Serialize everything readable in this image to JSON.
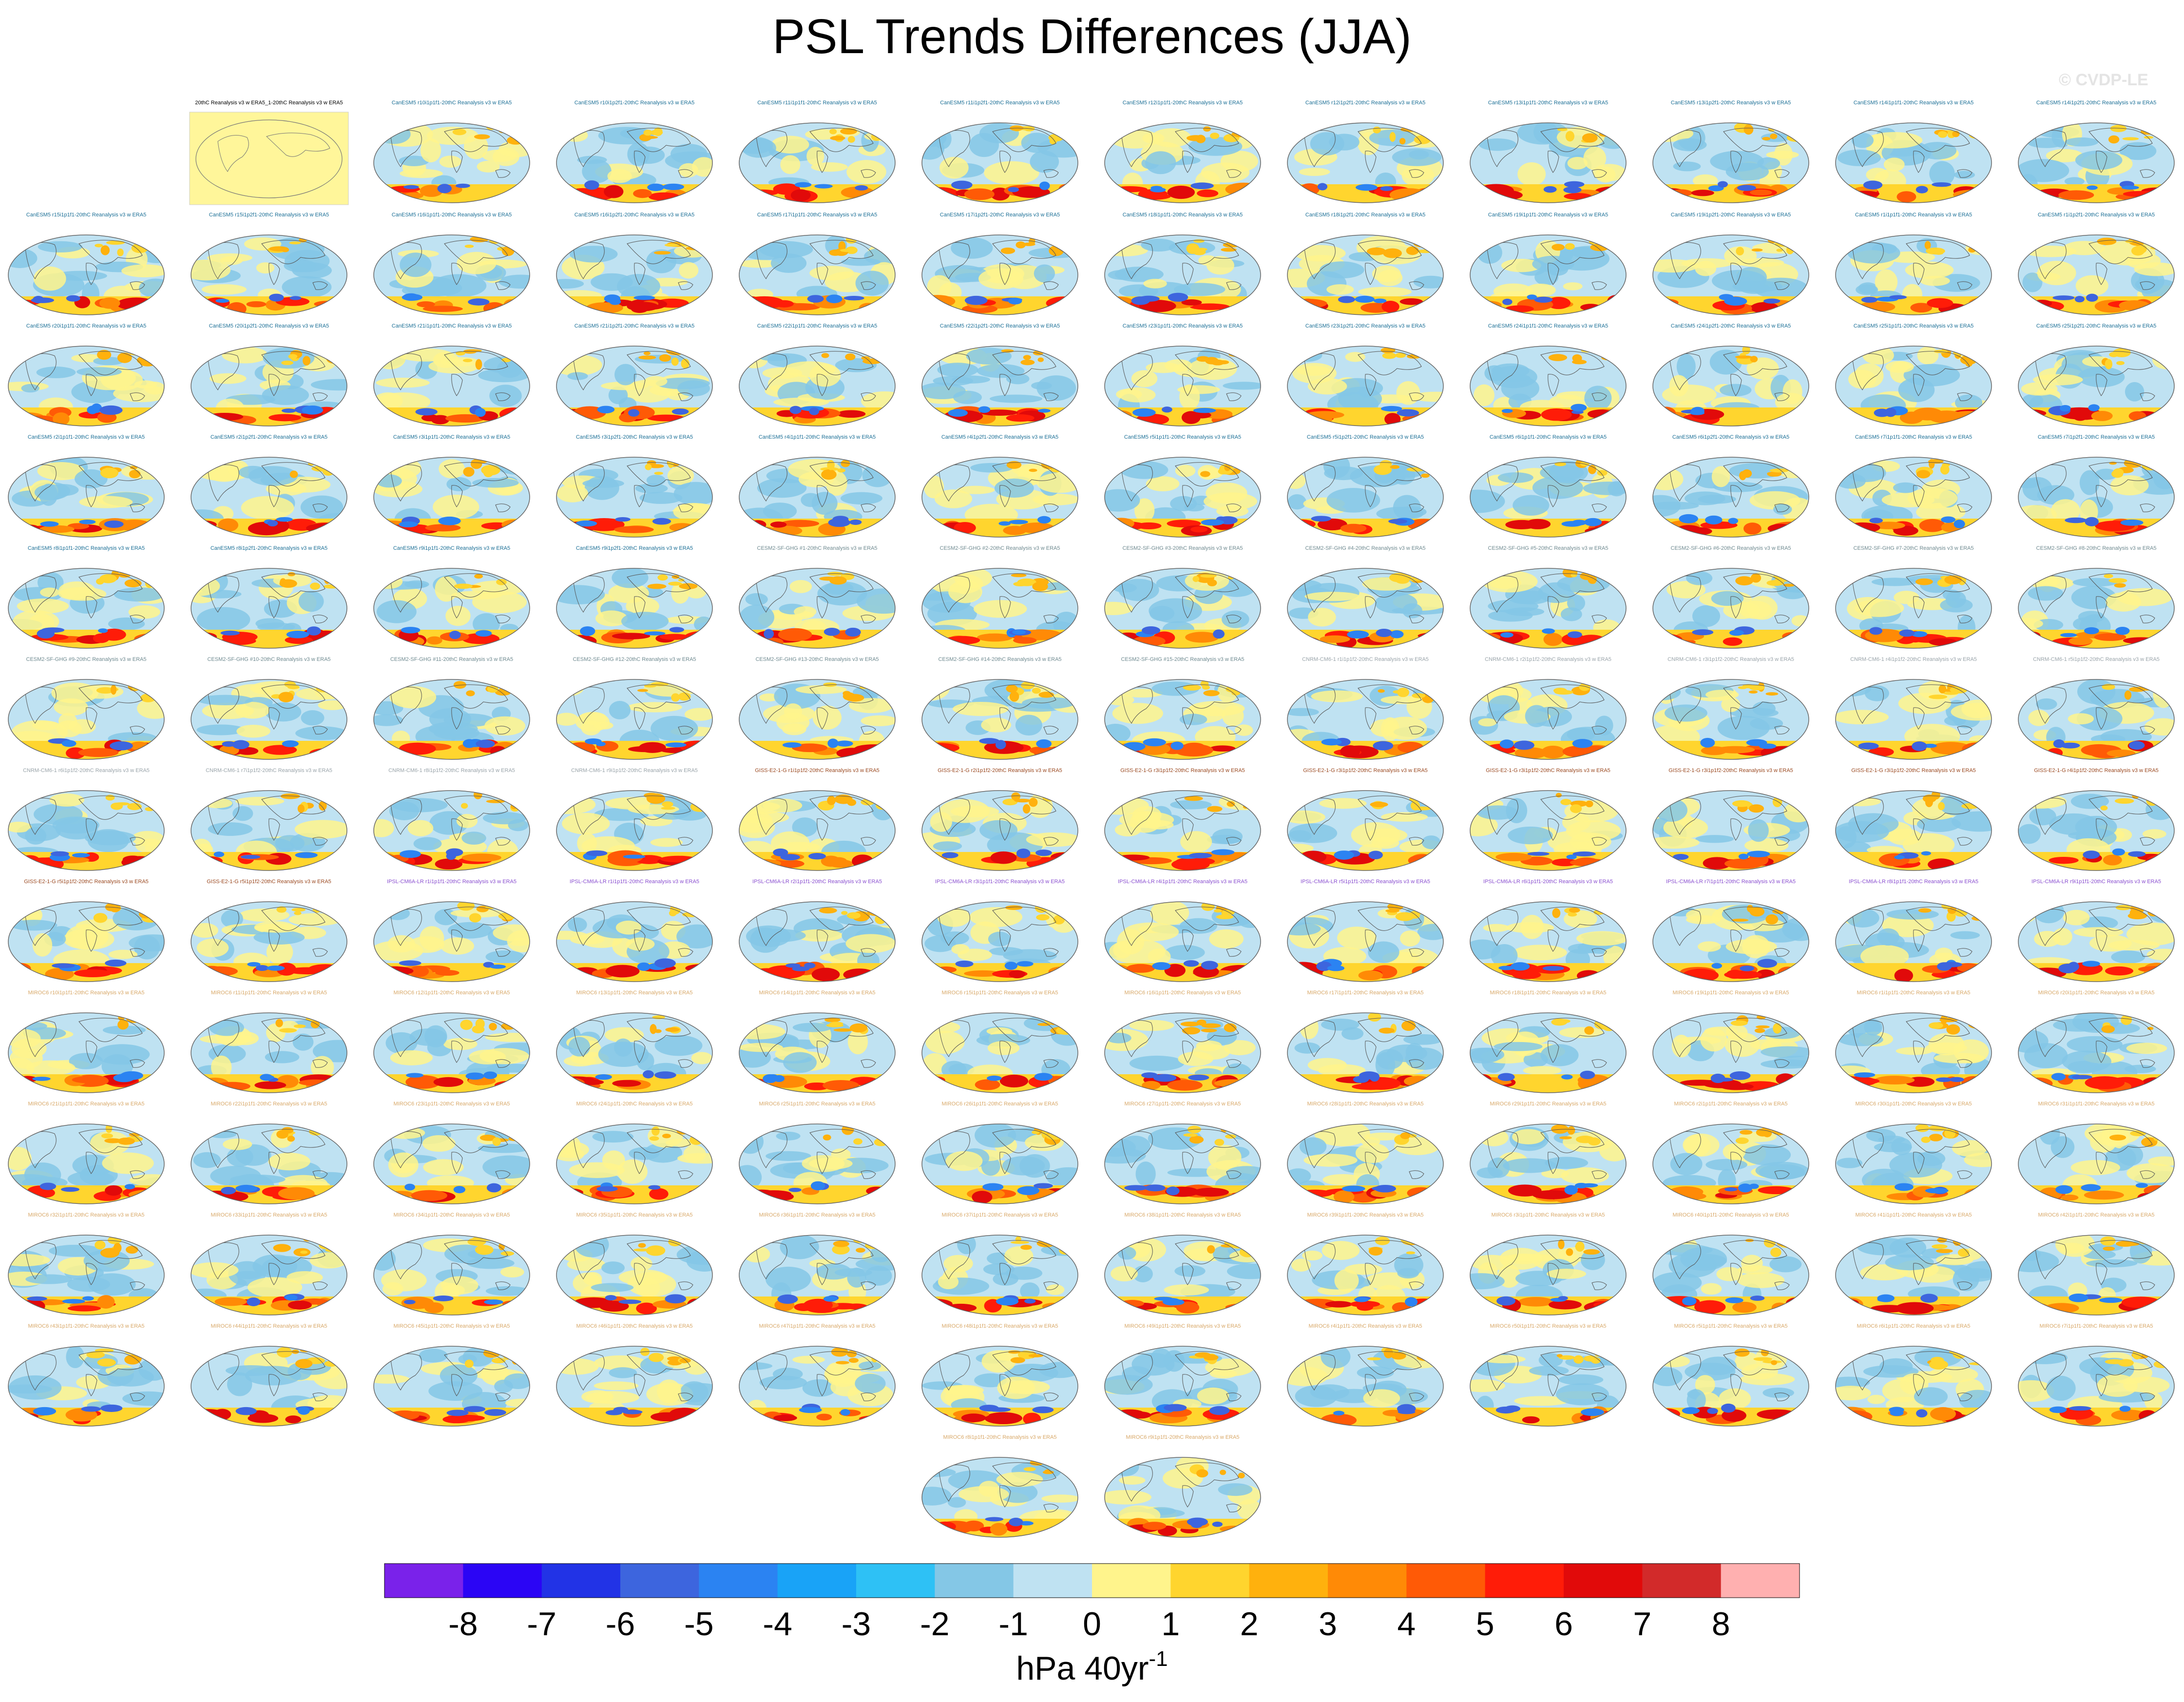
{
  "title": "PSL Trends Differences (JJA)",
  "watermark": "© CVDP-LE",
  "colors": {
    "canesm": "#1b6f96",
    "cesm": "#6f8a90",
    "cnrm": "#9aa4aa",
    "giss": "#9b4a22",
    "ipsl": "#8a4fd0",
    "miroc": "#d8a868",
    "reference": "#000000",
    "reference_fill": "#fff69a"
  },
  "panels": [
    [
      "20thC Reanalysis v3 w ERA5_1-20thC Reanalysis v3 w ERA5",
      "CanESM5 r10i1p1f1-20thC Reanalysis v3 w ERA5",
      "CanESM5 r10i1p2f1-20thC Reanalysis v3 w ERA5",
      "CanESM5 r11i1p1f1-20thC Reanalysis v3 w ERA5",
      "CanESM5 r11i1p2f1-20thC Reanalysis v3 w ERA5",
      "CanESM5 r12i1p1f1-20thC Reanalysis v3 w ERA5",
      "CanESM5 r12i1p2f1-20thC Reanalysis v3 w ERA5",
      "CanESM5 r13i1p1f1-20thC Reanalysis v3 w ERA5",
      "CanESM5 r13i1p2f1-20thC Reanalysis v3 w ERA5",
      "CanESM5 r14i1p1f1-20thC Reanalysis v3 w ERA5",
      "CanESM5 r14i1p2f1-20thC Reanalysis v3 w ERA5"
    ],
    [
      "CanESM5 r15i1p1f1-20thC Reanalysis v3 w ERA5",
      "CanESM5 r15i1p2f1-20thC Reanalysis v3 w ERA5",
      "CanESM5 r16i1p1f1-20thC Reanalysis v3 w ERA5",
      "CanESM5 r16i1p2f1-20thC Reanalysis v3 w ERA5",
      "CanESM5 r17i1p1f1-20thC Reanalysis v3 w ERA5",
      "CanESM5 r17i1p2f1-20thC Reanalysis v3 w ERA5",
      "CanESM5 r18i1p1f1-20thC Reanalysis v3 w ERA5",
      "CanESM5 r18i1p2f1-20thC Reanalysis v3 w ERA5",
      "CanESM5 r19i1p1f1-20thC Reanalysis v3 w ERA5",
      "CanESM5 r19i1p2f1-20thC Reanalysis v3 w ERA5",
      "CanESM5 r1i1p1f1-20thC Reanalysis v3 w ERA5",
      "CanESM5 r1i1p2f1-20thC Reanalysis v3 w ERA5"
    ],
    [
      "CanESM5 r20i1p1f1-20thC Reanalysis v3 w ERA5",
      "CanESM5 r20i1p2f1-20thC Reanalysis v3 w ERA5",
      "CanESM5 r21i1p1f1-20thC Reanalysis v3 w ERA5",
      "CanESM5 r21i1p2f1-20thC Reanalysis v3 w ERA5",
      "CanESM5 r22i1p1f1-20thC Reanalysis v3 w ERA5",
      "CanESM5 r22i1p2f1-20thC Reanalysis v3 w ERA5",
      "CanESM5 r23i1p1f1-20thC Reanalysis v3 w ERA5",
      "CanESM5 r23i1p2f1-20thC Reanalysis v3 w ERA5",
      "CanESM5 r24i1p1f1-20thC Reanalysis v3 w ERA5",
      "CanESM5 r24i1p2f1-20thC Reanalysis v3 w ERA5",
      "CanESM5 r25i1p1f1-20thC Reanalysis v3 w ERA5",
      "CanESM5 r25i1p2f1-20thC Reanalysis v3 w ERA5"
    ],
    [
      "CanESM5 r2i1p1f1-20thC Reanalysis v3 w ERA5",
      "CanESM5 r2i1p2f1-20thC Reanalysis v3 w ERA5",
      "CanESM5 r3i1p1f1-20thC Reanalysis v3 w ERA5",
      "CanESM5 r3i1p2f1-20thC Reanalysis v3 w ERA5",
      "CanESM5 r4i1p1f1-20thC Reanalysis v3 w ERA5",
      "CanESM5 r4i1p2f1-20thC Reanalysis v3 w ERA5",
      "CanESM5 r5i1p1f1-20thC Reanalysis v3 w ERA5",
      "CanESM5 r5i1p2f1-20thC Reanalysis v3 w ERA5",
      "CanESM5 r6i1p1f1-20thC Reanalysis v3 w ERA5",
      "CanESM5 r6i1p2f1-20thC Reanalysis v3 w ERA5",
      "CanESM5 r7i1p1f1-20thC Reanalysis v3 w ERA5",
      "CanESM5 r7i1p2f1-20thC Reanalysis v3 w ERA5"
    ],
    [
      "CanESM5 r8i1p1f1-20thC Reanalysis v3 w ERA5",
      "CanESM5 r8i1p2f1-20thC Reanalysis v3 w ERA5",
      "CanESM5 r9i1p1f1-20thC Reanalysis v3 w ERA5",
      "CanESM5 r9i1p2f1-20thC Reanalysis v3 w ERA5",
      "CESM2-SF-GHG #1-20thC Reanalysis v3 w ERA5",
      "CESM2-SF-GHG #2-20thC Reanalysis v3 w ERA5",
      "CESM2-SF-GHG #3-20thC Reanalysis v3 w ERA5",
      "CESM2-SF-GHG #4-20thC Reanalysis v3 w ERA5",
      "CESM2-SF-GHG #5-20thC Reanalysis v3 w ERA5",
      "CESM2-SF-GHG #6-20thC Reanalysis v3 w ERA5",
      "CESM2-SF-GHG #7-20thC Reanalysis v3 w ERA5",
      "CESM2-SF-GHG #8-20thC Reanalysis v3 w ERA5"
    ],
    [
      "CESM2-SF-GHG #9-20thC Reanalysis v3 w ERA5",
      "CESM2-SF-GHG #10-20thC Reanalysis v3 w ERA5",
      "CESM2-SF-GHG #11-20thC Reanalysis v3 w ERA5",
      "CESM2-SF-GHG #12-20thC Reanalysis v3 w ERA5",
      "CESM2-SF-GHG #13-20thC Reanalysis v3 w ERA5",
      "CESM2-SF-GHG #14-20thC Reanalysis v3 w ERA5",
      "CESM2-SF-GHG #15-20thC Reanalysis v3 w ERA5",
      "CNRM-CM6-1 r1i1p1f2-20thC Reanalysis v3 w ERA5",
      "CNRM-CM6-1 r2i1p1f2-20thC Reanalysis v3 w ERA5",
      "CNRM-CM6-1 r3i1p1f2-20thC Reanalysis v3 w ERA5",
      "CNRM-CM6-1 r4i1p1f2-20thC Reanalysis v3 w ERA5",
      "CNRM-CM6-1 r5i1p1f2-20thC Reanalysis v3 w ERA5"
    ],
    [
      "CNRM-CM6-1 r6i1p1f2-20thC Reanalysis v3 w ERA5",
      "CNRM-CM6-1 r7i1p1f2-20thC Reanalysis v3 w ERA5",
      "CNRM-CM6-1 r8i1p1f2-20thC Reanalysis v3 w ERA5",
      "CNRM-CM6-1 r9i1p1f2-20thC Reanalysis v3 w ERA5",
      "GISS-E2-1-G r1i1p1f2-20thC Reanalysis v3 w ERA5",
      "GISS-E2-1-G r2i1p1f2-20thC Reanalysis v3 w ERA5",
      "GISS-E2-1-G r3i1p1f2-20thC Reanalysis v3 w ERA5",
      "GISS-E2-1-G r3i1p1f2-20thC Reanalysis v3 w ERA5",
      "GISS-E2-1-G r3i1p1f2-20thC Reanalysis v3 w ERA5",
      "GISS-E2-1-G r3i1p1f2-20thC Reanalysis v3 w ERA5",
      "GISS-E2-1-G r3i1p1f2-20thC Reanalysis v3 w ERA5",
      "GISS-E2-1-G r4i1p1f2-20thC Reanalysis v3 w ERA5"
    ],
    [
      "GISS-E2-1-G r5i1p1f2-20thC Reanalysis v3 w ERA5",
      "GISS-E2-1-G r5i1p1f2-20thC Reanalysis v3 w ERA5",
      "IPSL-CM6A-LR r1i1p1f1-20thC Reanalysis v3 w ERA5",
      "IPSL-CM6A-LR r1i1p1f1-20thC Reanalysis v3 w ERA5",
      "IPSL-CM6A-LR r2i1p1f1-20thC Reanalysis v3 w ERA5",
      "IPSL-CM6A-LR r3i1p1f1-20thC Reanalysis v3 w ERA5",
      "IPSL-CM6A-LR r4i1p1f1-20thC Reanalysis v3 w ERA5",
      "IPSL-CM6A-LR r5i1p1f1-20thC Reanalysis v3 w ERA5",
      "IPSL-CM6A-LR r6i1p1f1-20thC Reanalysis v3 w ERA5",
      "IPSL-CM6A-LR r7i1p1f1-20thC Reanalysis v3 w ERA5",
      "IPSL-CM6A-LR r8i1p1f1-20thC Reanalysis v3 w ERA5",
      "IPSL-CM6A-LR r9i1p1f1-20thC Reanalysis v3 w ERA5"
    ],
    [
      "MIROC6 r10i1p1f1-20thC Reanalysis v3 w ERA5",
      "MIROC6 r11i1p1f1-20thC Reanalysis v3 w ERA5",
      "MIROC6 r12i1p1f1-20thC Reanalysis v3 w ERA5",
      "MIROC6 r13i1p1f1-20thC Reanalysis v3 w ERA5",
      "MIROC6 r14i1p1f1-20thC Reanalysis v3 w ERA5",
      "MIROC6 r15i1p1f1-20thC Reanalysis v3 w ERA5",
      "MIROC6 r16i1p1f1-20thC Reanalysis v3 w ERA5",
      "MIROC6 r17i1p1f1-20thC Reanalysis v3 w ERA5",
      "MIROC6 r18i1p1f1-20thC Reanalysis v3 w ERA5",
      "MIROC6 r19i1p1f1-20thC Reanalysis v3 w ERA5",
      "MIROC6 r1i1p1f1-20thC Reanalysis v3 w ERA5",
      "MIROC6 r20i1p1f1-20thC Reanalysis v3 w ERA5"
    ],
    [
      "MIROC6 r21i1p1f1-20thC Reanalysis v3 w ERA5",
      "MIROC6 r22i1p1f1-20thC Reanalysis v3 w ERA5",
      "MIROC6 r23i1p1f1-20thC Reanalysis v3 w ERA5",
      "MIROC6 r24i1p1f1-20thC Reanalysis v3 w ERA5",
      "MIROC6 r25i1p1f1-20thC Reanalysis v3 w ERA5",
      "MIROC6 r26i1p1f1-20thC Reanalysis v3 w ERA5",
      "MIROC6 r27i1p1f1-20thC Reanalysis v3 w ERA5",
      "MIROC6 r28i1p1f1-20thC Reanalysis v3 w ERA5",
      "MIROC6 r29i1p1f1-20thC Reanalysis v3 w ERA5",
      "MIROC6 r2i1p1f1-20thC Reanalysis v3 w ERA5",
      "MIROC6 r30i1p1f1-20thC Reanalysis v3 w ERA5",
      "MIROC6 r31i1p1f1-20thC Reanalysis v3 w ERA5"
    ],
    [
      "MIROC6 r32i1p1f1-20thC Reanalysis v3 w ERA5",
      "MIROC6 r33i1p1f1-20thC Reanalysis v3 w ERA5",
      "MIROC6 r34i1p1f1-20thC Reanalysis v3 w ERA5",
      "MIROC6 r35i1p1f1-20thC Reanalysis v3 w ERA5",
      "MIROC6 r36i1p1f1-20thC Reanalysis v3 w ERA5",
      "MIROC6 r37i1p1f1-20thC Reanalysis v3 w ERA5",
      "MIROC6 r38i1p1f1-20thC Reanalysis v3 w ERA5",
      "MIROC6 r39i1p1f1-20thC Reanalysis v3 w ERA5",
      "MIROC6 r3i1p1f1-20thC Reanalysis v3 w ERA5",
      "MIROC6 r40i1p1f1-20thC Reanalysis v3 w ERA5",
      "MIROC6 r41i1p1f1-20thC Reanalysis v3 w ERA5",
      "MIROC6 r42i1p1f1-20thC Reanalysis v3 w ERA5"
    ],
    [
      "MIROC6 r43i1p1f1-20thC Reanalysis v3 w ERA5",
      "MIROC6 r44i1p1f1-20thC Reanalysis v3 w ERA5",
      "MIROC6 r45i1p1f1-20thC Reanalysis v3 w ERA5",
      "MIROC6 r46i1p1f1-20thC Reanalysis v3 w ERA5",
      "MIROC6 r47i1p1f1-20thC Reanalysis v3 w ERA5",
      "MIROC6 r48i1p1f1-20thC Reanalysis v3 w ERA5",
      "MIROC6 r49i1p1f1-20thC Reanalysis v3 w ERA5",
      "MIROC6 r4i1p1f1-20thC Reanalysis v3 w ERA5",
      "MIROC6 r50i1p1f1-20thC Reanalysis v3 w ERA5",
      "MIROC6 r5i1p1f1-20thC Reanalysis v3 w ERA5",
      "MIROC6 r6i1p1f1-20thC Reanalysis v3 w ERA5",
      "MIROC6 r7i1p1f1-20thC Reanalysis v3 w ERA5"
    ],
    [
      "MIROC6 r8i1p1f1-20thC Reanalysis v3 w ERA5",
      "MIROC6 r9i1p1f1-20thC Reanalysis v3 w ERA5"
    ]
  ],
  "chart_data": {
    "type": "heatmap",
    "title": "PSL Trends Differences (JJA)",
    "projection": "global map panels",
    "colorbar": {
      "label": "hPa 40yr",
      "label_superscript": "-1",
      "ticks": [
        "-8",
        "-7",
        "-6",
        "-5",
        "-4",
        "-3",
        "-2",
        "-1",
        "0",
        "1",
        "2",
        "3",
        "4",
        "5",
        "6",
        "7",
        "8"
      ],
      "colors": [
        "#7a22ea",
        "#2b05f5",
        "#2233e6",
        "#3d65de",
        "#2b83f2",
        "#19a3f7",
        "#2ec1f5",
        "#84c7e6",
        "#bfe2f2",
        "#fff48c",
        "#ffd52e",
        "#ffb10d",
        "#ff8a06",
        "#ff5a06",
        "#ff1c08",
        "#e10a0a",
        "#d22a2a",
        "#ffb0b0"
      ]
    }
  }
}
